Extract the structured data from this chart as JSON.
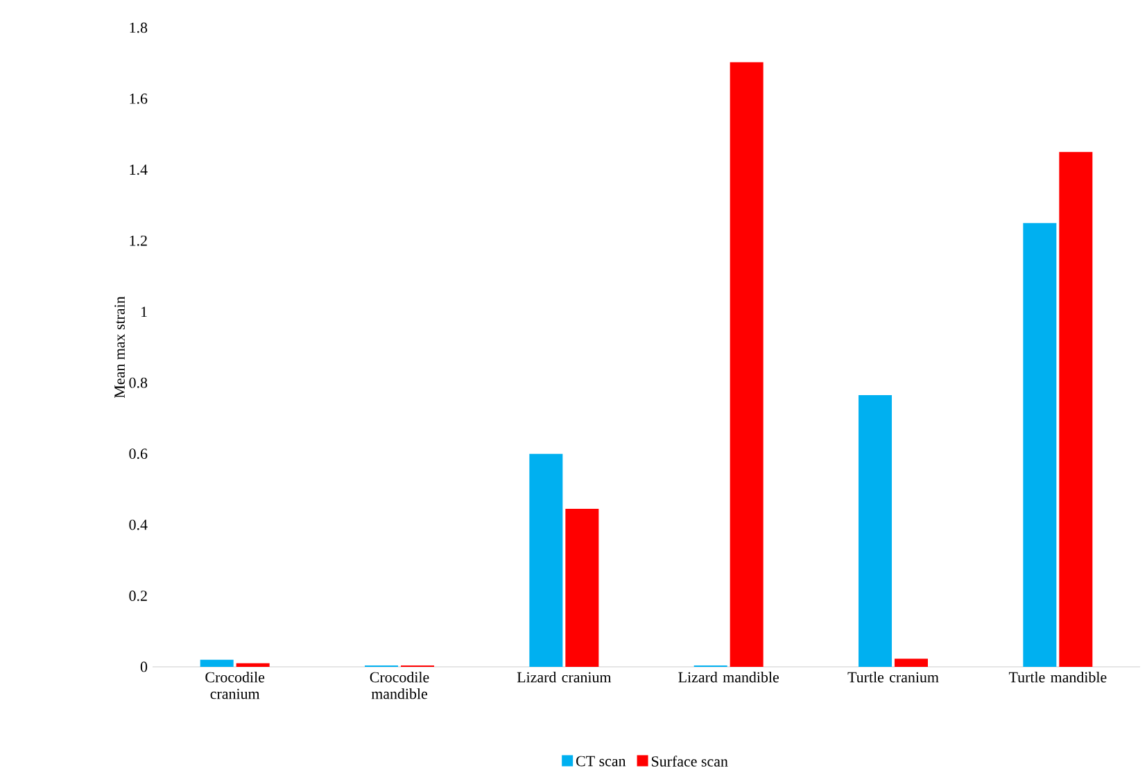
{
  "chart_data": {
    "type": "bar",
    "ylabel": "Mean max strain",
    "categories": [
      "Crocodile cranium",
      "Crocodile mandible",
      "Lizard cranium",
      "Lizard mandible",
      "Turtle cranium",
      "Turtle mandible"
    ],
    "series": [
      {
        "name": "CT scan",
        "color": "#00b0f0",
        "values": [
          0.02,
          0.004,
          0.6,
          0.004,
          0.765,
          1.25
        ]
      },
      {
        "name": "Surface scan",
        "color": "#ff0000",
        "values": [
          0.01,
          0.004,
          0.445,
          1.703,
          0.023,
          1.45
        ]
      }
    ],
    "ylim": [
      0,
      1.8
    ],
    "yticks": [
      0,
      0.2,
      0.4,
      0.6,
      0.8,
      1,
      1.2,
      1.4,
      1.6,
      1.8
    ],
    "grid": false,
    "legend": "bottom"
  }
}
